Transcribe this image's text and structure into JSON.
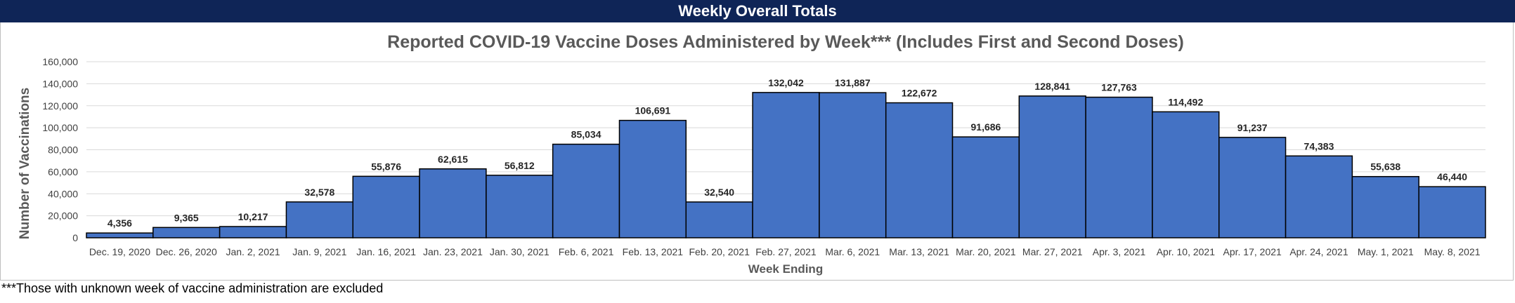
{
  "header": {
    "title": "Weekly Overall Totals"
  },
  "footnote": "***Those with unknown week of vaccine administration are excluded",
  "colors": {
    "header_bg": "#0f2557",
    "bar_fill": "#4472c4",
    "bar_stroke": "#000000",
    "grid": "#d9d9d9",
    "text": "#595959"
  },
  "chart_data": {
    "type": "bar",
    "title": "Reported COVID-19 Vaccine Doses Administered by Week*** (Includes First and Second Doses)",
    "xlabel": "Week Ending",
    "ylabel": "Number of Vaccinations",
    "ylim": [
      0,
      160000
    ],
    "yticks": [
      0,
      20000,
      40000,
      60000,
      80000,
      100000,
      120000,
      140000,
      160000
    ],
    "ytick_labels": [
      "0",
      "20,000",
      "40,000",
      "60,000",
      "80,000",
      "100,000",
      "120,000",
      "140,000",
      "160,000"
    ],
    "grid": true,
    "legend": "none",
    "categories": [
      "Dec. 19, 2020",
      "Dec. 26, 2020",
      "Jan. 2, 2021",
      "Jan. 9, 2021",
      "Jan. 16, 2021",
      "Jan. 23, 2021",
      "Jan. 30, 2021",
      "Feb. 6, 2021",
      "Feb. 13, 2021",
      "Feb. 20, 2021",
      "Feb. 27, 2021",
      "Mar. 6, 2021",
      "Mar. 13, 2021",
      "Mar. 20, 2021",
      "Mar. 27, 2021",
      "Apr. 3, 2021",
      "Apr. 10, 2021",
      "Apr. 17, 2021",
      "Apr. 24, 2021",
      "May. 1, 2021",
      "May. 8, 2021"
    ],
    "values": [
      4356,
      9365,
      10217,
      32578,
      55876,
      62615,
      56812,
      85034,
      106691,
      32540,
      132042,
      131887,
      122672,
      91686,
      128841,
      127763,
      114492,
      91237,
      74383,
      55638,
      46440
    ],
    "value_labels": [
      "4,356",
      "9,365",
      "10,217",
      "32,578",
      "55,876",
      "62,615",
      "56,812",
      "85,034",
      "106,691",
      "32,540",
      "132,042",
      "131,887",
      "122,672",
      "91,686",
      "128,841",
      "127,763",
      "114,492",
      "91,237",
      "74,383",
      "55,638",
      "46,440"
    ]
  }
}
